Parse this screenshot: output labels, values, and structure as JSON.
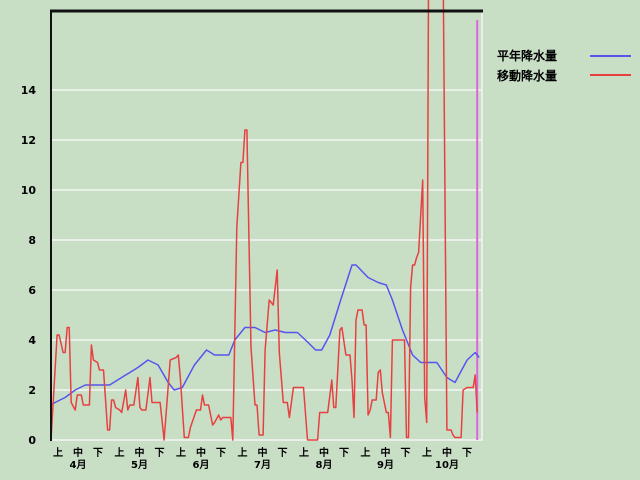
{
  "chart_data": {
    "type": "line",
    "title": "",
    "xlabel": "",
    "ylabel": "",
    "ylim": [
      0,
      17.2
    ],
    "xlim": [
      "4/1",
      "10/31"
    ],
    "y_ticks": [
      "0",
      "2",
      "4",
      "6",
      "8",
      "10",
      "12",
      "14"
    ],
    "y_tick_values": [
      0,
      2,
      4,
      6,
      8,
      10,
      12,
      14
    ],
    "grid": true,
    "legend_placement": "top-right",
    "x_period_labels": [
      "上",
      "中",
      "下"
    ],
    "x_months": [
      "4月",
      "5月",
      "6月",
      "7月",
      "8月",
      "9月",
      "10月"
    ],
    "today_marker": "10/29",
    "colors": {
      "normal": "#5555ee",
      "moving": "#e84040",
      "marker": "#dd66dd",
      "background": "#c8dfc6",
      "grid": "#e8f0e8"
    },
    "series": [
      {
        "name": "平年降水量",
        "color": "#5555ee",
        "points": [
          [
            "4/1",
            1.4
          ],
          [
            "4/3",
            1.5
          ],
          [
            "4/8",
            1.7
          ],
          [
            "4/13",
            2.0
          ],
          [
            "4/18",
            2.2
          ],
          [
            "4/23",
            2.2
          ],
          [
            "4/30",
            2.2
          ],
          [
            "5/8",
            2.6
          ],
          [
            "5/14",
            2.9
          ],
          [
            "5/19",
            3.2
          ],
          [
            "5/24",
            3.0
          ],
          [
            "5/29",
            2.3
          ],
          [
            "6/1",
            2.0
          ],
          [
            "6/5",
            2.1
          ],
          [
            "6/11",
            3.0
          ],
          [
            "6/17",
            3.6
          ],
          [
            "6/21",
            3.4
          ],
          [
            "6/28",
            3.4
          ],
          [
            "7/1",
            4.0
          ],
          [
            "7/6",
            4.5
          ],
          [
            "7/11",
            4.5
          ],
          [
            "7/16",
            4.3
          ],
          [
            "7/21",
            4.4
          ],
          [
            "7/26",
            4.3
          ],
          [
            "8/1",
            4.3
          ],
          [
            "8/5",
            4.0
          ],
          [
            "8/10",
            3.6
          ],
          [
            "8/13",
            3.6
          ],
          [
            "8/17",
            4.2
          ],
          [
            "8/22",
            5.5
          ],
          [
            "8/28",
            7.0
          ],
          [
            "8/30",
            7.0
          ],
          [
            "9/5",
            6.5
          ],
          [
            "9/10",
            6.3
          ],
          [
            "9/14",
            6.2
          ],
          [
            "9/17",
            5.6
          ],
          [
            "9/22",
            4.4
          ],
          [
            "9/27",
            3.4
          ],
          [
            "10/1",
            3.1
          ],
          [
            "10/9",
            3.1
          ],
          [
            "10/14",
            2.5
          ],
          [
            "10/18",
            2.3
          ],
          [
            "10/20",
            2.6
          ],
          [
            "10/24",
            3.2
          ],
          [
            "10/28",
            3.5
          ],
          [
            "10/30",
            3.3
          ]
        ]
      },
      {
        "name": "移動降水量",
        "color": "#e84040",
        "points": [
          [
            "4/1",
            0
          ],
          [
            "4/4",
            4.2
          ],
          [
            "4/5",
            4.2
          ],
          [
            "4/7",
            3.5
          ],
          [
            "4/8",
            3.5
          ],
          [
            "4/9",
            4.5
          ],
          [
            "4/10",
            4.5
          ],
          [
            "4/11",
            1.5
          ],
          [
            "4/13",
            1.2
          ],
          [
            "4/14",
            1.8
          ],
          [
            "4/16",
            1.8
          ],
          [
            "4/17",
            1.4
          ],
          [
            "4/20",
            1.4
          ],
          [
            "4/21",
            3.8
          ],
          [
            "4/22",
            3.2
          ],
          [
            "4/24",
            3.1
          ],
          [
            "4/25",
            2.8
          ],
          [
            "4/27",
            2.8
          ],
          [
            "4/29",
            0.4
          ],
          [
            "4/30",
            0.4
          ],
          [
            "5/1",
            1.6
          ],
          [
            "5/2",
            1.6
          ],
          [
            "5/3",
            1.3
          ],
          [
            "5/5",
            1.2
          ],
          [
            "5/6",
            1.1
          ],
          [
            "5/8",
            2.0
          ],
          [
            "5/9",
            1.2
          ],
          [
            "5/10",
            1.4
          ],
          [
            "5/12",
            1.4
          ],
          [
            "5/14",
            2.5
          ],
          [
            "5/15",
            1.3
          ],
          [
            "5/16",
            1.2
          ],
          [
            "5/18",
            1.2
          ],
          [
            "5/20",
            2.5
          ],
          [
            "5/21",
            1.5
          ],
          [
            "5/25",
            1.5
          ],
          [
            "5/27",
            0
          ],
          [
            "5/30",
            3.2
          ],
          [
            "6/2",
            3.3
          ],
          [
            "6/3",
            3.4
          ],
          [
            "6/4",
            2.5
          ],
          [
            "6/6",
            0.1
          ],
          [
            "6/8",
            0.1
          ],
          [
            "6/9",
            0.5
          ],
          [
            "6/12",
            1.2
          ],
          [
            "6/14",
            1.2
          ],
          [
            "6/15",
            1.8
          ],
          [
            "6/16",
            1.4
          ],
          [
            "6/18",
            1.4
          ],
          [
            "6/20",
            0.6
          ],
          [
            "6/21",
            0.7
          ],
          [
            "6/23",
            1.0
          ],
          [
            "6/24",
            0.8
          ],
          [
            "6/25",
            0.9
          ],
          [
            "6/29",
            0.9
          ],
          [
            "6/30",
            0
          ],
          [
            "7/2",
            8.5
          ],
          [
            "7/4",
            11.1
          ],
          [
            "7/5",
            11.1
          ],
          [
            "7/6",
            12.4
          ],
          [
            "7/7",
            12.4
          ],
          [
            "7/9",
            3.7
          ],
          [
            "7/11",
            1.4
          ],
          [
            "7/12",
            1.4
          ],
          [
            "7/13",
            0.2
          ],
          [
            "7/15",
            0.2
          ],
          [
            "7/16",
            3.6
          ],
          [
            "7/18",
            5.6
          ],
          [
            "7/19",
            5.5
          ],
          [
            "7/20",
            5.4
          ],
          [
            "7/22",
            6.8
          ],
          [
            "7/23",
            3.5
          ],
          [
            "7/25",
            1.5
          ],
          [
            "7/27",
            1.5
          ],
          [
            "7/28",
            0.9
          ],
          [
            "7/30",
            2.1
          ],
          [
            "8/4",
            2.1
          ],
          [
            "8/6",
            0
          ],
          [
            "8/11",
            0
          ],
          [
            "8/12",
            1.1
          ],
          [
            "8/16",
            1.1
          ],
          [
            "8/18",
            2.4
          ],
          [
            "8/19",
            1.3
          ],
          [
            "8/20",
            1.3
          ],
          [
            "8/22",
            4.4
          ],
          [
            "8/23",
            4.5
          ],
          [
            "8/25",
            3.4
          ],
          [
            "8/27",
            3.4
          ],
          [
            "8/28",
            2.4
          ],
          [
            "8/29",
            0.9
          ],
          [
            "8/30",
            4.8
          ],
          [
            "8/31",
            5.2
          ],
          [
            "9/2",
            5.2
          ],
          [
            "9/3",
            4.6
          ],
          [
            "9/4",
            4.6
          ],
          [
            "9/5",
            1.0
          ],
          [
            "9/6",
            1.2
          ],
          [
            "9/7",
            1.6
          ],
          [
            "9/9",
            1.6
          ],
          [
            "9/10",
            2.7
          ],
          [
            "9/11",
            2.8
          ],
          [
            "9/12",
            1.9
          ],
          [
            "9/14",
            1.1
          ],
          [
            "9/15",
            1.1
          ],
          [
            "9/16",
            0.1
          ],
          [
            "9/17",
            4.0
          ],
          [
            "9/23",
            4.0
          ],
          [
            "9/24",
            0.1
          ],
          [
            "9/25",
            0.1
          ],
          [
            "9/26",
            6.1
          ],
          [
            "9/27",
            7.0
          ],
          [
            "9/28",
            7.0
          ],
          [
            "9/29",
            7.3
          ],
          [
            "9/30",
            7.5
          ],
          [
            "10/2",
            10.4
          ],
          [
            "10/3",
            1.7
          ],
          [
            "10/4",
            0.7
          ],
          [
            "10/5",
            20
          ],
          [
            "10/12",
            20
          ],
          [
            "10/14",
            0.4
          ],
          [
            "10/16",
            0.4
          ],
          [
            "10/17",
            0.2
          ],
          [
            "10/18",
            0.1
          ],
          [
            "10/21",
            0.1
          ],
          [
            "10/22",
            2.0
          ],
          [
            "10/24",
            2.1
          ],
          [
            "10/27",
            2.1
          ],
          [
            "10/28",
            2.6
          ],
          [
            "10/29",
            1.1
          ]
        ]
      }
    ]
  }
}
